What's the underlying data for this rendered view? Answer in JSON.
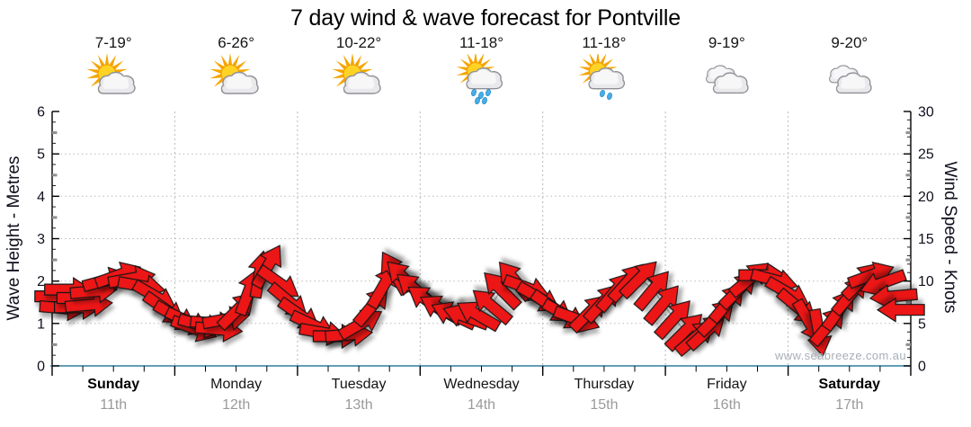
{
  "title": "7 day wind & wave forecast for Pontville",
  "watermark": "www.seabreeze.com.au",
  "days": [
    {
      "name": "Sunday",
      "date": "11th",
      "temp": "7-19°",
      "icon": "sun-cloud",
      "emphasis": true
    },
    {
      "name": "Monday",
      "date": "12th",
      "temp": "6-26°",
      "icon": "sun-cloud",
      "emphasis": false
    },
    {
      "name": "Tuesday",
      "date": "13th",
      "temp": "10-22°",
      "icon": "sun-cloud",
      "emphasis": false
    },
    {
      "name": "Wednesday",
      "date": "14th",
      "temp": "11-18°",
      "icon": "sun-cloud-rain",
      "emphasis": false
    },
    {
      "name": "Thursday",
      "date": "15th",
      "temp": "11-18°",
      "icon": "sun-cloud-showers",
      "emphasis": false
    },
    {
      "name": "Friday",
      "date": "16th",
      "temp": "9-19°",
      "icon": "cloudy",
      "emphasis": false
    },
    {
      "name": "Saturday",
      "date": "17th",
      "temp": "9-20°",
      "icon": "cloudy",
      "emphasis": true
    }
  ],
  "chart_data": {
    "type": "wind-arrow-timeline",
    "title": "7 day wind & wave forecast for Pontville",
    "left_axis": {
      "label": "Wave Height - Metres",
      "min": 0,
      "max": 6,
      "ticks": [
        0,
        1,
        2,
        3,
        4,
        5,
        6
      ]
    },
    "right_axis": {
      "label": "Wind Speed - Knots",
      "min": 0,
      "max": 30,
      "ticks": [
        0,
        5,
        10,
        15,
        20,
        25,
        30
      ]
    },
    "gridline_wave_values": [
      1,
      2,
      3,
      4,
      5
    ],
    "x_days": [
      "Sunday",
      "Monday",
      "Tuesday",
      "Wednesday",
      "Thursday",
      "Friday",
      "Saturday"
    ],
    "arrow_color": "#ec1212",
    "arrow_outline": "#161616",
    "zero_line_color": "#2f7da0",
    "grid_color": "#b8b8b8",
    "wave_line_color": "#b6b6b6",
    "wind_arrows_t_knots_dir": [
      [
        0.05,
        8.2,
        0
      ],
      [
        0.09,
        6.8,
        5
      ],
      [
        0.13,
        9.0,
        0
      ],
      [
        0.21,
        6.9,
        0
      ],
      [
        0.23,
        8.0,
        0
      ],
      [
        0.3,
        7.2,
        -5
      ],
      [
        0.34,
        8.8,
        -5
      ],
      [
        0.44,
        10.1,
        -15
      ],
      [
        0.54,
        10.7,
        -20
      ],
      [
        0.65,
        10.3,
        -10
      ],
      [
        0.73,
        9.4,
        10
      ],
      [
        0.84,
        8.2,
        30
      ],
      [
        0.92,
        6.7,
        35
      ],
      [
        1.01,
        5.8,
        30
      ],
      [
        1.11,
        5.2,
        25
      ],
      [
        1.16,
        4.4,
        20
      ],
      [
        1.22,
        4.8,
        15
      ],
      [
        1.32,
        5.0,
        5
      ],
      [
        1.36,
        4.3,
        5
      ],
      [
        1.42,
        5.5,
        -10
      ],
      [
        1.51,
        6.6,
        -45
      ],
      [
        1.6,
        8.7,
        -70
      ],
      [
        1.69,
        10.8,
        -80
      ],
      [
        1.76,
        11.8,
        -60
      ],
      [
        1.85,
        9.8,
        35
      ],
      [
        1.93,
        7.6,
        40
      ],
      [
        2.02,
        6.0,
        35
      ],
      [
        2.13,
        4.8,
        25
      ],
      [
        2.21,
        3.9,
        10
      ],
      [
        2.32,
        3.5,
        0
      ],
      [
        2.42,
        3.7,
        -5
      ],
      [
        2.52,
        5.0,
        -30
      ],
      [
        2.61,
        7.1,
        -50
      ],
      [
        2.7,
        9.4,
        -60
      ],
      [
        2.79,
        11.0,
        -120
      ],
      [
        2.87,
        10.3,
        -135
      ],
      [
        2.96,
        9.0,
        -140
      ],
      [
        3.06,
        7.7,
        -145
      ],
      [
        3.17,
        6.7,
        -150
      ],
      [
        3.27,
        6.0,
        -155
      ],
      [
        3.37,
        5.8,
        -160
      ],
      [
        3.47,
        6.0,
        -150
      ],
      [
        3.58,
        7.1,
        -140
      ],
      [
        3.66,
        9.0,
        -135
      ],
      [
        3.77,
        10.1,
        -130
      ],
      [
        3.87,
        9.2,
        20
      ],
      [
        3.97,
        8.0,
        30
      ],
      [
        4.08,
        6.9,
        35
      ],
      [
        4.18,
        6.0,
        30
      ],
      [
        4.28,
        5.5,
        20
      ],
      [
        4.38,
        6.3,
        -45
      ],
      [
        4.49,
        7.5,
        -48
      ],
      [
        4.59,
        8.8,
        -50
      ],
      [
        4.69,
        9.9,
        -48
      ],
      [
        4.79,
        10.3,
        -45
      ],
      [
        4.9,
        9.0,
        -50
      ],
      [
        4.98,
        7.3,
        -50
      ],
      [
        5.07,
        5.6,
        -48
      ],
      [
        5.16,
        4.1,
        -45
      ],
      [
        5.25,
        3.4,
        -40
      ],
      [
        5.34,
        4.1,
        -42
      ],
      [
        5.42,
        5.8,
        -45
      ],
      [
        5.51,
        7.5,
        -50
      ],
      [
        5.6,
        9.0,
        -45
      ],
      [
        5.69,
        10.3,
        -40
      ],
      [
        5.79,
        10.7,
        0
      ],
      [
        5.89,
        10.1,
        15
      ],
      [
        6.0,
        8.6,
        30
      ],
      [
        6.08,
        6.9,
        40
      ],
      [
        6.17,
        5.2,
        60
      ],
      [
        6.25,
        3.9,
        80
      ],
      [
        6.33,
        4.8,
        -50
      ],
      [
        6.42,
        6.7,
        -55
      ],
      [
        6.51,
        8.4,
        -50
      ],
      [
        6.6,
        10.1,
        -45
      ],
      [
        6.68,
        10.7,
        -20
      ],
      [
        6.77,
        9.8,
        160
      ],
      [
        6.86,
        8.2,
        175
      ],
      [
        6.92,
        6.6,
        180
      ]
    ]
  }
}
